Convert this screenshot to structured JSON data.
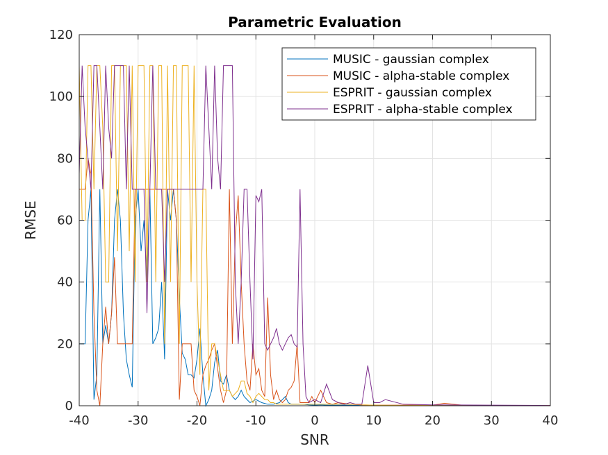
{
  "chart_data": {
    "type": "line",
    "title": "Parametric Evaluation",
    "xlabel": "SNR",
    "ylabel": "RMSE",
    "xlim": [
      -40,
      40
    ],
    "ylim": [
      0,
      120
    ],
    "xticks": [
      -40,
      -30,
      -20,
      -10,
      0,
      10,
      20,
      30,
      40
    ],
    "yticks": [
      0,
      20,
      40,
      60,
      80,
      100,
      120
    ],
    "grid": true,
    "legend_position": "top-right",
    "series": [
      {
        "name": "MUSIC - gaussian complex",
        "color": "#0072BD",
        "x": [
          -40,
          -39.5,
          -39,
          -38.5,
          -38,
          -37.5,
          -37,
          -36.5,
          -36,
          -35.5,
          -35,
          -34.5,
          -34,
          -33.5,
          -33,
          -32.5,
          -32,
          -31.5,
          -31,
          -30.5,
          -30,
          -29.5,
          -29,
          -28.5,
          -28,
          -27.5,
          -27,
          -26.5,
          -26,
          -25.5,
          -25,
          -24.5,
          -24,
          -23.5,
          -23,
          -22.5,
          -22,
          -21.5,
          -21,
          -20.5,
          -20,
          -19.5,
          -19,
          -18.5,
          -18,
          -17.5,
          -17,
          -16.5,
          -16,
          -15.5,
          -15,
          -14.5,
          -14,
          -13.5,
          -13,
          -12.5,
          -12,
          -11.5,
          -11,
          -10.5,
          -10,
          -9,
          -8,
          -7,
          -6,
          -5,
          -4.5,
          -4,
          -3,
          -2,
          -1,
          0,
          1,
          2,
          3,
          5,
          8,
          10,
          15,
          20,
          30,
          40
        ],
        "y": [
          20,
          20,
          20,
          60,
          70,
          2,
          10,
          70,
          20,
          26,
          20,
          30,
          60,
          70,
          60,
          30,
          15,
          10,
          6,
          60,
          70,
          50,
          60,
          40,
          70,
          20,
          22,
          25,
          40,
          15,
          70,
          60,
          70,
          60,
          35,
          17,
          15,
          10,
          10,
          9,
          15,
          25,
          10,
          0,
          2,
          5,
          14,
          18,
          8,
          7,
          10,
          5,
          3,
          2,
          3,
          5,
          3,
          2,
          1,
          1.5,
          2,
          1,
          0.5,
          0.5,
          1,
          3,
          1,
          0.5,
          0.5,
          0.5,
          0.3,
          0.2,
          0.3,
          0.2,
          0.2,
          0.2,
          0.1,
          0.1,
          0.1,
          0.1,
          0.1,
          0.1
        ]
      },
      {
        "name": "MUSIC - alpha-stable complex",
        "color": "#D95319",
        "x": [
          -40,
          -39.5,
          -39,
          -38.5,
          -38,
          -37.5,
          -37,
          -36.5,
          -36,
          -35.5,
          -35,
          -34.5,
          -34,
          -33.5,
          -33,
          -32.5,
          -32,
          -31.5,
          -31,
          -30.5,
          -30,
          -29.5,
          -29,
          -28.5,
          -28,
          -27.5,
          -27,
          -26.5,
          -26,
          -25.5,
          -25,
          -24.5,
          -24,
          -23.5,
          -23,
          -22.5,
          -22,
          -21.5,
          -21,
          -20.5,
          -20,
          -19.5,
          -19,
          -18.5,
          -18,
          -17.5,
          -17,
          -16.5,
          -16,
          -15.5,
          -15,
          -14.5,
          -14,
          -13.5,
          -13,
          -12.5,
          -12,
          -11.5,
          -11,
          -10.5,
          -10,
          -9.5,
          -9,
          -8.5,
          -8,
          -7.5,
          -7,
          -6.5,
          -6,
          -5.5,
          -5,
          -4.5,
          -4,
          -3.5,
          -3,
          -2.5,
          -2,
          -1.5,
          -1,
          -0.5,
          0,
          1,
          2,
          3,
          4,
          6,
          8,
          10,
          15,
          20,
          22,
          25,
          30,
          40
        ],
        "y": [
          70,
          70,
          70,
          80,
          75,
          30,
          5,
          0,
          20,
          32,
          20,
          30,
          48,
          20,
          20,
          20,
          20,
          20,
          20,
          70,
          70,
          70,
          70,
          70,
          70,
          70,
          70,
          70,
          70,
          70,
          70,
          70,
          70,
          60,
          2,
          20,
          20,
          20,
          20,
          5,
          3,
          0,
          10,
          13,
          15,
          18,
          20,
          12,
          5,
          1,
          5,
          70,
          20,
          55,
          68,
          40,
          20,
          8,
          5,
          20,
          10,
          12,
          5,
          3,
          35,
          10,
          2,
          5,
          2,
          1,
          2,
          5,
          6,
          8,
          20,
          1,
          1,
          1,
          1,
          3,
          1,
          5,
          1,
          0.5,
          1,
          0.5,
          0.3,
          0.2,
          0.2,
          0.2,
          0.8,
          0.2,
          0.1,
          0.1
        ]
      },
      {
        "name": "ESPRIT - gaussian complex",
        "color": "#EDB120",
        "x": [
          -40,
          -39.5,
          -39,
          -38.5,
          -38,
          -37.5,
          -37,
          -36.5,
          -36,
          -35.5,
          -35,
          -34.5,
          -34,
          -33.5,
          -33,
          -32.5,
          -32,
          -31.5,
          -31,
          -30.5,
          -30,
          -29.5,
          -29,
          -28.5,
          -28,
          -27.5,
          -27,
          -26.5,
          -26,
          -25.5,
          -25,
          -24.5,
          -24,
          -23.5,
          -23,
          -22.5,
          -22,
          -21.5,
          -21,
          -20.5,
          -20,
          -19.5,
          -19,
          -18.5,
          -18,
          -17.5,
          -17,
          -16.5,
          -16,
          -15.5,
          -15,
          -14.5,
          -14,
          -13.5,
          -13,
          -12.5,
          -12,
          -11.5,
          -11,
          -10.5,
          -10,
          -9.5,
          -9,
          -8.5,
          -8,
          -7.5,
          -7,
          -6.5,
          -6,
          -5.5,
          -5,
          -4.5,
          -4,
          -3.5,
          -3,
          -2,
          -1,
          0,
          1,
          2,
          3,
          4,
          5,
          6,
          8,
          10,
          15,
          20,
          30,
          40
        ],
        "y": [
          110,
          60,
          60,
          110,
          110,
          70,
          110,
          110,
          90,
          40,
          40,
          110,
          110,
          50,
          110,
          110,
          110,
          50,
          110,
          40,
          110,
          110,
          110,
          40,
          110,
          110,
          40,
          110,
          110,
          20,
          110,
          40,
          110,
          110,
          20,
          110,
          110,
          110,
          40,
          110,
          40,
          10,
          70,
          70,
          5,
          20,
          20,
          15,
          10,
          5,
          5,
          5,
          3,
          4,
          5,
          8,
          8,
          4,
          3,
          1,
          3,
          4,
          3,
          2,
          2,
          1,
          1,
          0.5,
          0.5,
          0.5,
          0.5,
          0.5,
          0.5,
          0.5,
          0.5,
          0.5,
          0.5,
          0.5,
          0.5,
          0.5,
          0.5,
          0.5,
          0.5,
          0.5,
          0.3,
          0.2,
          0.1,
          0.1,
          0.1,
          0.1
        ]
      },
      {
        "name": "ESPRIT - alpha-stable complex",
        "color": "#7E2F8E",
        "x": [
          -40,
          -39.5,
          -39,
          -38.5,
          -38,
          -37.5,
          -37,
          -36.5,
          -36,
          -35.5,
          -35,
          -34.5,
          -34,
          -33.5,
          -33,
          -32.5,
          -32,
          -31.5,
          -31,
          -30.5,
          -30,
          -29.5,
          -29,
          -28.5,
          -28,
          -27.5,
          -27,
          -26.5,
          -26,
          -25.5,
          -25,
          -24.5,
          -24,
          -23.5,
          -23,
          -22.5,
          -22,
          -21.5,
          -21,
          -20.5,
          -20,
          -19.5,
          -19,
          -18.5,
          -18,
          -17.5,
          -17,
          -16.5,
          -16,
          -15.5,
          -15,
          -14.5,
          -14,
          -13.5,
          -13,
          -12.5,
          -12,
          -11.5,
          -11,
          -10.5,
          -10,
          -9.5,
          -9,
          -8.5,
          -8,
          -7.5,
          -7,
          -6.5,
          -6,
          -5.5,
          -5,
          -4.5,
          -4,
          -3.5,
          -3,
          -2.5,
          -2,
          -1.5,
          -1,
          0,
          1,
          2,
          3,
          4,
          5,
          6,
          7,
          8,
          9,
          10,
          11,
          12,
          15,
          20,
          30,
          40
        ],
        "y": [
          75,
          110,
          90,
          80,
          70,
          110,
          110,
          90,
          70,
          110,
          90,
          80,
          110,
          110,
          110,
          110,
          70,
          110,
          70,
          70,
          70,
          70,
          70,
          30,
          70,
          110,
          70,
          70,
          70,
          40,
          70,
          70,
          70,
          70,
          70,
          70,
          70,
          70,
          70,
          70,
          70,
          70,
          70,
          110,
          90,
          70,
          110,
          80,
          70,
          110,
          110,
          110,
          110,
          40,
          20,
          40,
          70,
          70,
          40,
          15,
          68,
          66,
          70,
          20,
          18,
          20,
          22,
          25,
          20,
          18,
          20,
          22,
          23,
          20,
          19,
          70,
          20,
          3,
          1,
          2,
          1,
          7,
          2,
          1,
          0.5,
          1,
          0.5,
          0.5,
          13,
          1,
          1,
          2,
          0.5,
          0.3,
          0.2,
          0.1
        ]
      }
    ]
  }
}
